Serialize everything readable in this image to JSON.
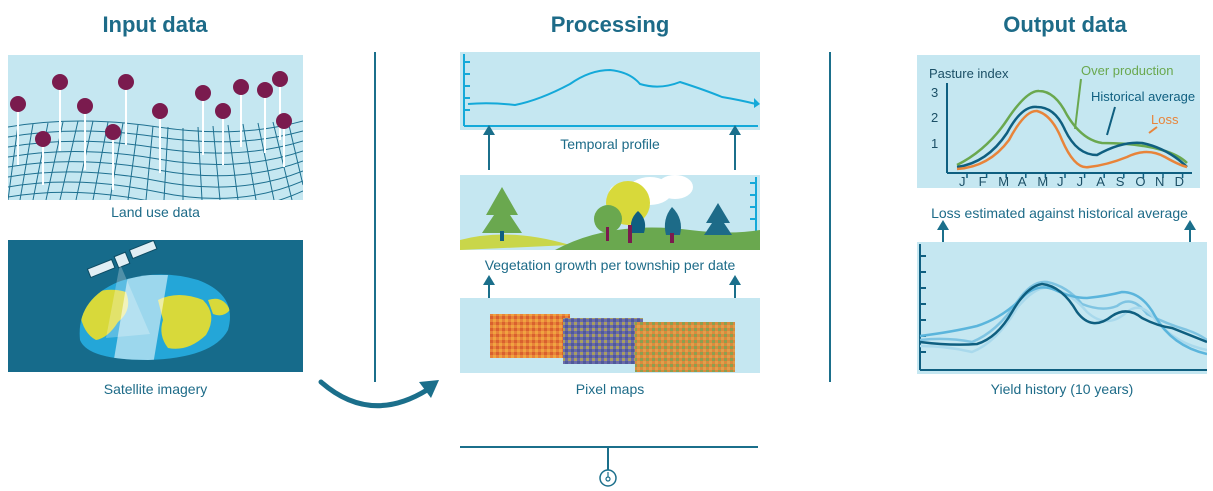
{
  "columns": {
    "input": {
      "title": "Input data",
      "land_use_caption": "Land use data",
      "satellite_caption": "Satellite imagery"
    },
    "processing": {
      "title": "Processing",
      "temporal_caption": "Temporal profile",
      "vegetation_caption": "Vegetation growth per township per date",
      "pixel_caption": "Pixel maps"
    },
    "output": {
      "title": "Output data",
      "loss_caption": "Loss estimated against historical average",
      "yield_caption": "Yield history (10 years)"
    }
  },
  "pasture_chart": {
    "ylabel": "Pasture index",
    "y_ticks": [
      "1",
      "2",
      "3"
    ],
    "x_ticks": [
      "J",
      "F",
      "M",
      "A",
      "M",
      "J",
      "J",
      "A",
      "S",
      "O",
      "N",
      "D"
    ],
    "series_labels": {
      "over": "Over production",
      "historical": "Historical average",
      "loss": "Loss"
    }
  },
  "colors": {
    "primary": "#1d6b88",
    "panel": "#c5e7f1",
    "satellite_bg": "#166b8b",
    "pin": "#7a1b4e",
    "over_production": "#6aa84f",
    "historical": "#0f5f80",
    "loss": "#e8843a",
    "temporal_line": "#14a9d9"
  },
  "icons": {
    "arrow_curve": "curved-arrow-icon",
    "end_marker": "pin-marker-icon"
  }
}
